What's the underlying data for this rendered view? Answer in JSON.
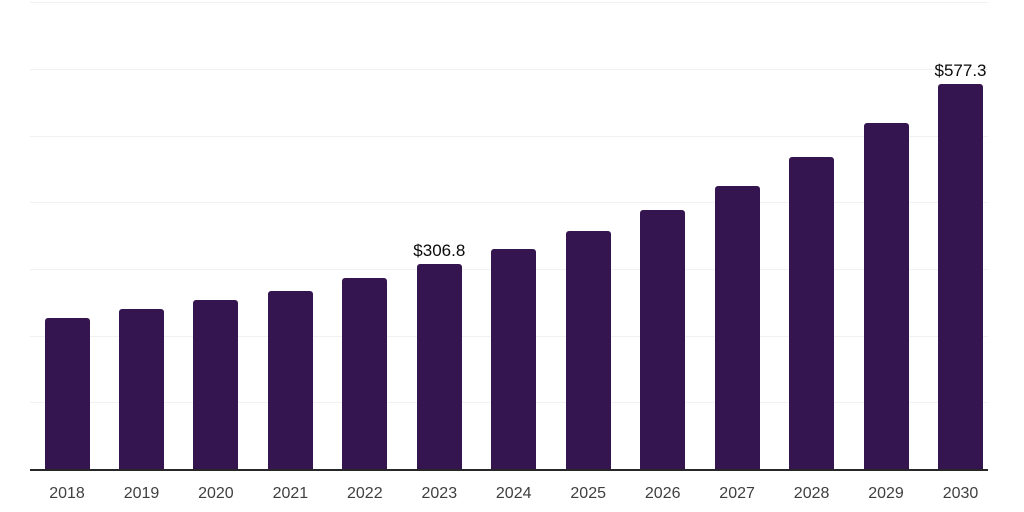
{
  "chart_data": {
    "type": "bar",
    "categories": [
      "2018",
      "2019",
      "2020",
      "2021",
      "2022",
      "2023",
      "2024",
      "2025",
      "2026",
      "2027",
      "2028",
      "2029",
      "2030"
    ],
    "values": [
      226.4,
      239.9,
      253.4,
      266.9,
      287.1,
      306.8,
      330.6,
      356.8,
      388.3,
      424.3,
      467.8,
      518.7,
      577.3
    ],
    "data_labels": {
      "2023": "$306.8",
      "2030": "$577.3"
    },
    "title": "",
    "xlabel": "",
    "ylabel": "",
    "ylim": [
      0,
      700
    ],
    "grid_step": 100,
    "grid": "on",
    "y_axis_tick_labels_visible": false,
    "legend": "none",
    "colors": {
      "bar": "#351550",
      "grid": "#f1f1f1",
      "axis": "#27272a",
      "tick_label": "#3f3f3f",
      "value_label": "#0a0a0a",
      "background": "#ffffff"
    }
  }
}
